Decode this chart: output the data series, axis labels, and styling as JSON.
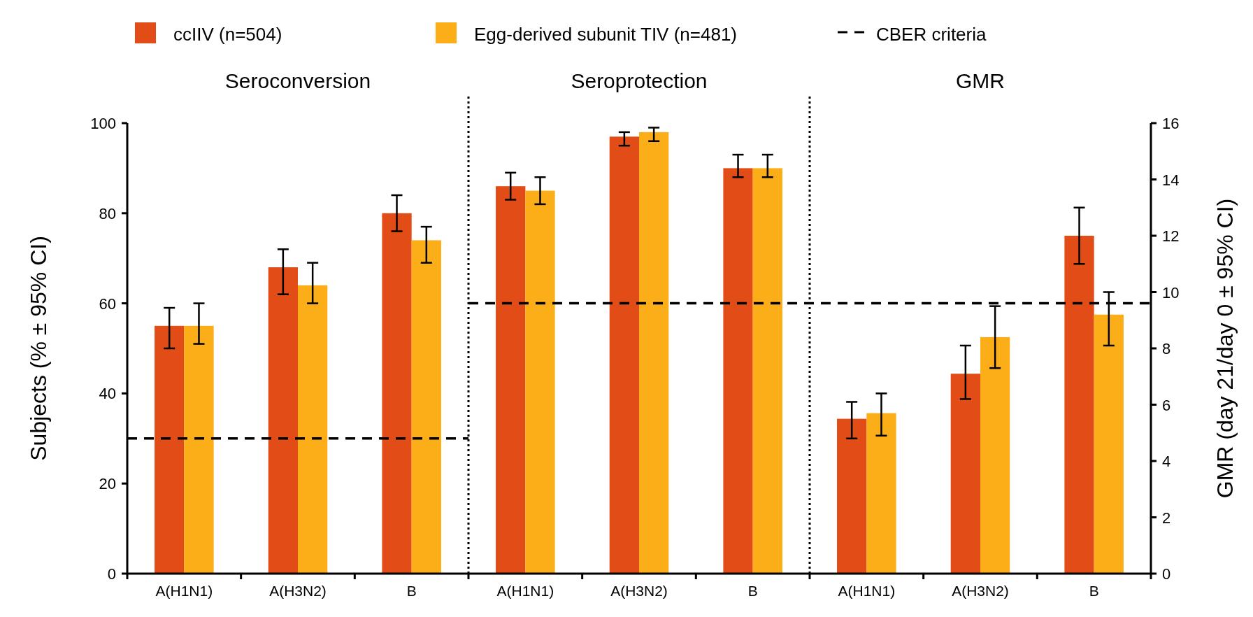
{
  "chart_data": {
    "type": "bar",
    "categories": [
      "A(H1N1)",
      "A(H3N2)",
      "B",
      "A(H1N1)",
      "A(H3N2)",
      "B",
      "A(H1N1)",
      "A(H3N2)",
      "B"
    ],
    "ylabel": "Subjects (% ± 95% CI)",
    "y2label": "GMR (day 21/day 0 ± 95% CI)",
    "ylim": [
      0,
      100
    ],
    "yticks": [
      0,
      20,
      40,
      60,
      80,
      100
    ],
    "y2lim": [
      0,
      16
    ],
    "y2ticks": [
      0,
      2,
      4,
      6,
      8,
      10,
      12,
      14,
      16
    ],
    "series": [
      {
        "name": "ccIIV (n=504)",
        "color": "#e24c17",
        "values": [
          55,
          68,
          80,
          86,
          97,
          90,
          null,
          null,
          null
        ],
        "errors": [
          [
            50,
            59
          ],
          [
            62,
            72
          ],
          [
            76,
            84
          ],
          [
            83,
            89
          ],
          [
            95,
            98
          ],
          [
            88,
            93
          ],
          null,
          null,
          null
        ]
      },
      {
        "name": "Egg-derived subunit TIV (n=481)",
        "color": "#fcae19",
        "values": [
          55,
          64,
          74,
          85,
          98,
          90,
          null,
          null,
          null
        ],
        "errors": [
          [
            51,
            60
          ],
          [
            60,
            69
          ],
          [
            69,
            77
          ],
          [
            82,
            88
          ],
          [
            96,
            99
          ],
          [
            88,
            93
          ],
          null,
          null,
          null
        ]
      },
      {
        "color": "#e24c17",
        "axis": "y2",
        "values": [
          null,
          null,
          null,
          null,
          null,
          null,
          5.5,
          7.1,
          12.0
        ],
        "errors": [
          null,
          null,
          null,
          null,
          null,
          null,
          [
            4.8,
            6.1
          ],
          [
            6.2,
            8.1
          ],
          [
            11.0,
            13.0
          ]
        ]
      },
      {
        "color": "#fcae19",
        "axis": "y2",
        "values": [
          null,
          null,
          null,
          null,
          null,
          null,
          5.7,
          8.4,
          9.2
        ],
        "errors": [
          null,
          null,
          null,
          null,
          null,
          null,
          [
            4.9,
            6.4
          ],
          [
            7.3,
            9.5
          ],
          [
            8.1,
            10.0
          ]
        ]
      }
    ],
    "ref_lines": [
      {
        "axis": "y",
        "value": 30,
        "label": "CBER criteria",
        "color": "#000000",
        "line_style": "dashed"
      },
      {
        "axis": "y",
        "value": 60,
        "color": "#000000",
        "line_style": "dashed"
      }
    ],
    "annotations": [
      "Seroconversion",
      "Seroprotection",
      "GMR"
    ],
    "legend": "top"
  }
}
